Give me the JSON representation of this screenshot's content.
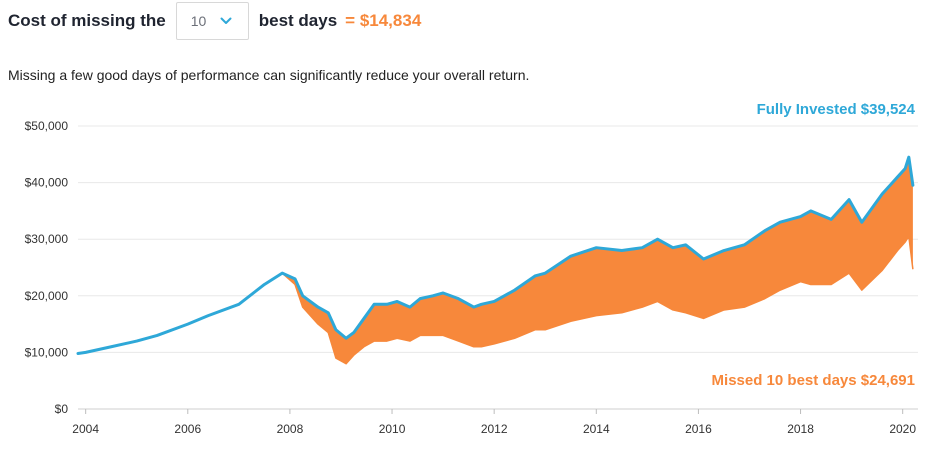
{
  "header": {
    "prefix_label": "Cost of missing the",
    "suffix_label": "best days",
    "cost_label": "= $14,834"
  },
  "selector": {
    "selected_value": "10"
  },
  "subtitle": "Missing a few good days of performance can significantly reduce your overall return.",
  "colors": {
    "fully_invested": "#2ea8d8",
    "missed": "#f7883b",
    "grid": "#e8e8e8",
    "axis_text": "#333333"
  },
  "chart_data": {
    "type": "area",
    "title": "",
    "xlabel": "",
    "ylabel": "",
    "xlim": [
      2003.85,
      2020.3
    ],
    "ylim": [
      0,
      50000
    ],
    "grid": true,
    "x_ticks": [
      2004,
      2006,
      2008,
      2010,
      2012,
      2014,
      2016,
      2018,
      2020
    ],
    "x_tick_labels": [
      "2004",
      "2006",
      "2008",
      "2010",
      "2012",
      "2014",
      "2016",
      "2018",
      "2020"
    ],
    "y_ticks": [
      0,
      10000,
      20000,
      30000,
      40000,
      50000
    ],
    "y_tick_labels": [
      "$0",
      "$10,000",
      "$20,000",
      "$30,000",
      "$40,000",
      "$50,000"
    ],
    "series": [
      {
        "name": "Fully Invested",
        "label": "Fully Invested $39,524",
        "color": "#2ea8d8",
        "x": [
          2003.85,
          2004.0,
          2004.5,
          2005.0,
          2005.4,
          2006.0,
          2006.4,
          2007.0,
          2007.5,
          2007.85,
          2008.1,
          2008.25,
          2008.55,
          2008.75,
          2008.9,
          2009.1,
          2009.25,
          2009.45,
          2009.65,
          2009.9,
          2010.1,
          2010.35,
          2010.55,
          2010.8,
          2011.0,
          2011.3,
          2011.6,
          2011.75,
          2012.0,
          2012.4,
          2012.8,
          2013.0,
          2013.5,
          2014.0,
          2014.5,
          2014.9,
          2015.2,
          2015.5,
          2015.75,
          2016.1,
          2016.5,
          2016.9,
          2017.3,
          2017.6,
          2018.0,
          2018.2,
          2018.6,
          2018.95,
          2019.2,
          2019.6,
          2019.9,
          2020.05,
          2020.12,
          2020.2
        ],
        "y": [
          9800,
          10000,
          11000,
          12000,
          13000,
          15000,
          16500,
          18500,
          22000,
          24000,
          23000,
          20000,
          18000,
          17000,
          14000,
          12500,
          13500,
          16000,
          18500,
          18500,
          19000,
          18000,
          19500,
          20000,
          20500,
          19500,
          18000,
          18500,
          19000,
          21000,
          23500,
          24000,
          27000,
          28500,
          28000,
          28500,
          30000,
          28500,
          29000,
          26500,
          28000,
          29000,
          31500,
          33000,
          34000,
          35000,
          33500,
          37000,
          33000,
          38000,
          41000,
          42500,
          44500,
          39524
        ]
      },
      {
        "name": "Missed 10 best days",
        "label": "Missed 10 best days $24,691",
        "color": "#f7883b",
        "x": [
          2003.85,
          2004.0,
          2004.5,
          2005.0,
          2005.4,
          2006.0,
          2006.4,
          2007.0,
          2007.5,
          2007.85,
          2008.1,
          2008.25,
          2008.55,
          2008.75,
          2008.9,
          2009.1,
          2009.25,
          2009.45,
          2009.65,
          2009.9,
          2010.1,
          2010.35,
          2010.55,
          2010.8,
          2011.0,
          2011.3,
          2011.6,
          2011.75,
          2012.0,
          2012.4,
          2012.8,
          2013.0,
          2013.5,
          2014.0,
          2014.5,
          2014.9,
          2015.2,
          2015.5,
          2015.75,
          2016.1,
          2016.5,
          2016.9,
          2017.3,
          2017.6,
          2018.0,
          2018.2,
          2018.6,
          2018.95,
          2019.2,
          2019.6,
          2019.9,
          2020.05,
          2020.12,
          2020.2
        ],
        "y": [
          9800,
          10000,
          11000,
          12000,
          13000,
          15000,
          16500,
          18500,
          22000,
          24000,
          22000,
          18000,
          15000,
          13500,
          9000,
          8000,
          9500,
          11000,
          12000,
          12000,
          12500,
          12000,
          13000,
          13000,
          13000,
          12000,
          11000,
          11000,
          11500,
          12500,
          14000,
          14000,
          15500,
          16500,
          17000,
          18000,
          19000,
          17500,
          17000,
          16000,
          17500,
          18000,
          19500,
          21000,
          22500,
          22000,
          22000,
          24000,
          21000,
          24500,
          28000,
          29500,
          30500,
          24691
        ]
      }
    ]
  }
}
